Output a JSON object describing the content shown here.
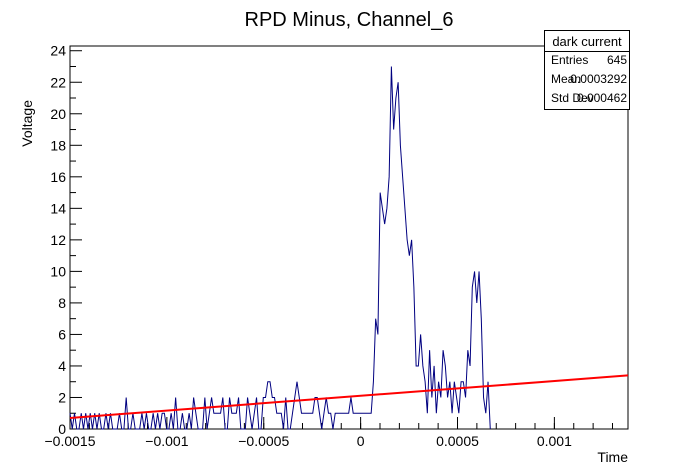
{
  "chart_data": {
    "type": "line",
    "title": "RPD Minus, Channel_6",
    "xlabel": "Time",
    "ylabel": "Voltage",
    "xlim": [
      -0.0015,
      0.00138
    ],
    "ylim": [
      0,
      24.3
    ],
    "x_ticks": [
      {
        "value": -0.0015,
        "label": "−0.0015"
      },
      {
        "value": -0.001,
        "label": "−0.001"
      },
      {
        "value": -0.0005,
        "label": "−0.0005"
      },
      {
        "value": 0,
        "label": "0"
      },
      {
        "value": 0.0005,
        "label": "0.0005"
      },
      {
        "value": 0.001,
        "label": "0.001"
      }
    ],
    "y_ticks": [
      0,
      2,
      4,
      6,
      8,
      10,
      12,
      14,
      16,
      18,
      20,
      22,
      24
    ],
    "series": [
      {
        "color": "#000080",
        "x_start": -0.0015,
        "x_step": 1.16e-05,
        "values": [
          1,
          0,
          1,
          0,
          0,
          1,
          0,
          1,
          0,
          1,
          0,
          1,
          0,
          1,
          0,
          0,
          1,
          0,
          1,
          0,
          0,
          0,
          1,
          0,
          0,
          2,
          0,
          0,
          1,
          0,
          0,
          0,
          1,
          0,
          1,
          0,
          0,
          1,
          0,
          1,
          0,
          1,
          1,
          0,
          0,
          1,
          0,
          2,
          0,
          0,
          1,
          0,
          0,
          1,
          0,
          2,
          1,
          0,
          0,
          0,
          2,
          0,
          1,
          2,
          1,
          1,
          1,
          1,
          2,
          0,
          0,
          2,
          1,
          1,
          1,
          2,
          0,
          0,
          0,
          2,
          1,
          0,
          1,
          2,
          0,
          0,
          2,
          2,
          3,
          3,
          2,
          2,
          1,
          1,
          1,
          0,
          2,
          0,
          0,
          1,
          2,
          3,
          2,
          1,
          1,
          1,
          1,
          1,
          1,
          2,
          2,
          1,
          0,
          1,
          2,
          1,
          1,
          0,
          1,
          1,
          1,
          1,
          1,
          1,
          1,
          2,
          1,
          1,
          1,
          1,
          1,
          1,
          1,
          1,
          1,
          3,
          7,
          6,
          15,
          14,
          13,
          14,
          16,
          23,
          19,
          21,
          22,
          18,
          16,
          14,
          12,
          11,
          12,
          9,
          4,
          4,
          6,
          4,
          3,
          1,
          5,
          2,
          4,
          1,
          3,
          2,
          5,
          4,
          2,
          3,
          1,
          3,
          2,
          1,
          3,
          3,
          2,
          5,
          4,
          9,
          10,
          8,
          10,
          7,
          2,
          1,
          3,
          0
        ],
        "fit_line": {
          "color": "#ff0000",
          "x": [
            -0.0015,
            0.00138
          ],
          "y": [
            0.7,
            3.4
          ]
        }
      }
    ]
  },
  "stats": {
    "title": "dark current",
    "rows": [
      {
        "label": "Entries",
        "value": "645"
      },
      {
        "label": "Mean",
        "value": "0.0003292"
      },
      {
        "label": "Std Dev",
        "value": "0.000462"
      }
    ]
  }
}
